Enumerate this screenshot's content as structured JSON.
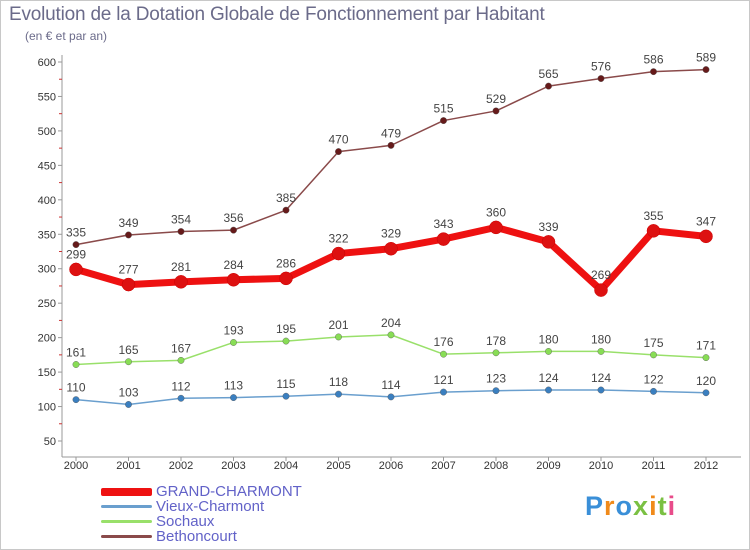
{
  "title": "Evolution de la Dotation Globale de Fonctionnement par Habitant",
  "subtitle": "(en € et par an)",
  "logo": "Proxiti",
  "chart_data": {
    "type": "line",
    "title": "Evolution de la Dotation Globale de Fonctionnement par Habitant",
    "subtitle": "(en € et par an)",
    "xlabel": "",
    "ylabel": "",
    "x": [
      "2000",
      "2001",
      "2002",
      "2003",
      "2004",
      "2005",
      "2006",
      "2007",
      "2008",
      "2009",
      "2010",
      "2011",
      "2012"
    ],
    "ylim": [
      50,
      600
    ],
    "yticks": [
      50,
      100,
      150,
      200,
      250,
      300,
      350,
      400,
      450,
      500,
      550,
      600
    ],
    "grid": false,
    "legend_position": "bottom-left",
    "series": [
      {
        "name": "GRAND-CHARMONT",
        "color": "#ee1111",
        "marker": "#dd1111",
        "width": 7,
        "values": [
          299,
          277,
          281,
          284,
          286,
          322,
          329,
          343,
          360,
          339,
          269,
          355,
          347
        ]
      },
      {
        "name": "Vieux-Charmont",
        "color": "#6a9fce",
        "marker": "#3a7fc0",
        "width": 1.5,
        "values": [
          110,
          103,
          112,
          113,
          115,
          118,
          114,
          121,
          123,
          124,
          124,
          122,
          120
        ]
      },
      {
        "name": "Sochaux",
        "color": "#99e06a",
        "marker": "#88dd55",
        "width": 1.5,
        "values": [
          161,
          165,
          167,
          193,
          195,
          201,
          204,
          176,
          178,
          180,
          180,
          175,
          171
        ]
      },
      {
        "name": "Bethoncourt",
        "color": "#8a4a4a",
        "marker": "#661a1a",
        "width": 1.5,
        "values": [
          335,
          349,
          354,
          356,
          385,
          470,
          479,
          515,
          529,
          565,
          576,
          586,
          589
        ]
      }
    ]
  }
}
